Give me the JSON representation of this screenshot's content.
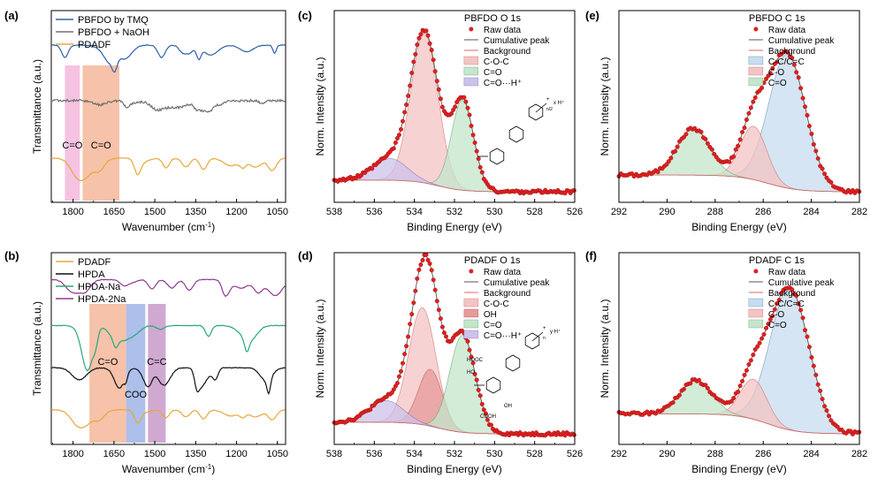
{
  "panels": [
    {
      "id": "a",
      "label": "(a)",
      "type": "ftir",
      "xlabel": "Wavenumber (cm",
      "xlabel_sup": "-1",
      "xlabel_end": ")",
      "ylabel": "Transmittance (a.u.)",
      "xlim": [
        1880,
        1020
      ],
      "xticks": [
        "1800",
        "1650",
        "1500",
        "1350",
        "1200",
        "1050"
      ],
      "xtick_values": [
        1800,
        1650,
        1500,
        1350,
        1200,
        1050
      ],
      "bands": [
        {
          "from": 1830,
          "to": 1775,
          "color": "#f3b8dc",
          "label": "C=O"
        },
        {
          "from": 1765,
          "to": 1630,
          "color": "#f5b79a",
          "label": "C=O"
        }
      ],
      "series": [
        {
          "name": "PBFDO by TMQ",
          "color": "#2c62a8",
          "base": 0.18,
          "amp": 0.9,
          "seed": 1
        },
        {
          "name": "PBFDO + NaOH",
          "color": "#707070",
          "base": 0.47,
          "amp": 0.5,
          "seed": 2
        },
        {
          "name": "PDADF",
          "color": "#e8a73a",
          "base": 0.77,
          "amp": 1.0,
          "seed": 3
        }
      ]
    },
    {
      "id": "b",
      "label": "(b)",
      "type": "ftir",
      "xlabel": "Wavenumber (cm",
      "xlabel_sup": "-1",
      "xlabel_end": ")",
      "ylabel": "Transmittance (a.u.)",
      "xlim": [
        1880,
        1020
      ],
      "xticks": [
        "1800",
        "1650",
        "1500",
        "1350",
        "1200",
        "1050"
      ],
      "xtick_values": [
        1800,
        1650,
        1500,
        1350,
        1200,
        1050
      ],
      "bands": [
        {
          "from": 1740,
          "to": 1605,
          "color": "#f5b79a",
          "label": "C=O"
        },
        {
          "from": 1605,
          "to": 1535,
          "color": "#9fb4e6",
          "label": "COO"
        },
        {
          "from": 1525,
          "to": 1460,
          "color": "#c79ac9",
          "label": "C=C"
        }
      ],
      "series": [
        {
          "name": "PDADF",
          "color": "#e8a73a",
          "base": 0.82,
          "amp": 0.8,
          "seed": 3
        },
        {
          "name": "HPDA",
          "color": "#111111",
          "base": 0.6,
          "amp": 1.3,
          "seed": 4
        },
        {
          "name": "HPDA-Na",
          "color": "#2aa57e",
          "base": 0.38,
          "amp": 1.0,
          "seed": 5
        },
        {
          "name": "HPDA-2Na",
          "color": "#8e3b8e",
          "base": 0.14,
          "amp": 0.9,
          "seed": 6
        }
      ]
    },
    {
      "id": "c",
      "label": "(c)",
      "type": "xps",
      "title": "PBFDO O 1s",
      "xlabel": "Binding Energy (eV)",
      "ylabel": "Norm. Intensity (a.u.)",
      "xlim": [
        538,
        526
      ],
      "xticks": [
        "538",
        "536",
        "534",
        "532",
        "530",
        "528",
        "526"
      ],
      "xtick_values": [
        538,
        536,
        534,
        532,
        530,
        528,
        526
      ],
      "bg": {
        "left": 0.07,
        "right": 0.0,
        "center": 532.8
      },
      "peaks": [
        {
          "name": "C-O-C",
          "center": 533.5,
          "fwhm": 1.6,
          "height": 0.9,
          "color": "#f3c4c4",
          "line": "#d06a6a"
        },
        {
          "name": "C=O",
          "center": 531.6,
          "fwhm": 1.3,
          "height": 0.54,
          "color": "#c4e6cc",
          "line": "#5fa872"
        },
        {
          "name": "C=O···H⁺",
          "center": 535.2,
          "fwhm": 2.0,
          "height": 0.13,
          "color": "#cdc3ea",
          "line": "#8570c0"
        }
      ],
      "legend": [
        "Raw data",
        "Cumulative peak",
        "Background",
        "C-O-C",
        "C=O",
        "C=O···H⁺"
      ],
      "structure_labels": [
        "+",
        "x H⁺",
        "n/2"
      ]
    },
    {
      "id": "d",
      "label": "(d)",
      "type": "xps",
      "title": "PDADF O 1s",
      "xlabel": "Binding Energy (eV)",
      "ylabel": "Norm. Intensity (a.u.)",
      "xlim": [
        538,
        526
      ],
      "xticks": [
        "538",
        "536",
        "534",
        "532",
        "530",
        "528",
        "526"
      ],
      "xtick_values": [
        538,
        536,
        534,
        532,
        530,
        528,
        526
      ],
      "bg": {
        "left": 0.07,
        "right": 0.0,
        "center": 532.8
      },
      "peaks": [
        {
          "name": "C-O-C",
          "center": 533.6,
          "fwhm": 1.6,
          "height": 0.7,
          "color": "#f3c4c4",
          "line": "#d06a6a"
        },
        {
          "name": "OH",
          "center": 533.2,
          "fwhm": 1.4,
          "height": 0.34,
          "color": "#e79a9a",
          "line": "#c05555"
        },
        {
          "name": "C=O",
          "center": 531.6,
          "fwhm": 1.5,
          "height": 0.58,
          "color": "#c4e6cc",
          "line": "#5fa872"
        },
        {
          "name": "C=O···H⁺",
          "center": 535.4,
          "fwhm": 2.0,
          "height": 0.13,
          "color": "#cdc3ea",
          "line": "#8570c0"
        }
      ],
      "legend": [
        "Raw data",
        "Cumulative peak",
        "Background",
        "C-O-C",
        "OH",
        "C=O",
        "C=O···H⁺"
      ],
      "structure_labels": [
        "HOOC",
        "OH",
        "HO",
        "COOH",
        "+",
        "y H⁺",
        "n"
      ]
    },
    {
      "id": "e",
      "label": "(e)",
      "type": "xps",
      "title": "PBFDO C 1s",
      "xlabel": "Binding Energy (eV)",
      "ylabel": "Norm. Intensity (a.u.)",
      "xlim": [
        292,
        282
      ],
      "xticks": [
        "292",
        "290",
        "288",
        "286",
        "284",
        "282"
      ],
      "xtick_values": [
        292,
        290,
        288,
        286,
        284,
        282
      ],
      "bg": {
        "left": 0.1,
        "right": 0.0,
        "center": 285.8
      },
      "peaks": [
        {
          "name": "C-C/C=C",
          "center": 285.0,
          "fwhm": 1.8,
          "height": 0.8,
          "color": "#c7ddef",
          "line": "#5a8bc0"
        },
        {
          "name": "C-O",
          "center": 286.4,
          "fwhm": 1.3,
          "height": 0.32,
          "color": "#f3c4c4",
          "line": "#d06a6a"
        },
        {
          "name": "C=O",
          "center": 288.9,
          "fwhm": 1.6,
          "height": 0.28,
          "color": "#c4e6cc",
          "line": "#5fa872"
        }
      ],
      "legend": [
        "Raw data",
        "Cumulative peak",
        "Background",
        "C-C/C=C",
        "C-O",
        "C=O"
      ]
    },
    {
      "id": "f",
      "label": "(f)",
      "type": "xps",
      "title": "PDADF C 1s",
      "xlabel": "Binding Energy (eV)",
      "ylabel": "Norm. Intensity (a.u.)",
      "xlim": [
        292,
        282
      ],
      "xticks": [
        "292",
        "290",
        "288",
        "286",
        "284",
        "282"
      ],
      "xtick_values": [
        292,
        290,
        288,
        286,
        284,
        282
      ],
      "bg": {
        "left": 0.12,
        "right": 0.0,
        "center": 285.8
      },
      "peaks": [
        {
          "name": "C-C/C=C",
          "center": 284.9,
          "fwhm": 1.9,
          "height": 0.85,
          "color": "#c7ddef",
          "line": "#5a8bc0"
        },
        {
          "name": "C-O",
          "center": 286.4,
          "fwhm": 1.3,
          "height": 0.24,
          "color": "#f3c4c4",
          "line": "#d06a6a"
        },
        {
          "name": "C=O",
          "center": 288.8,
          "fwhm": 1.6,
          "height": 0.2,
          "color": "#c4e6cc",
          "line": "#5fa872"
        }
      ],
      "legend": [
        "Raw data",
        "Cumulative peak",
        "Background",
        "C-C/C=C",
        "C-O",
        "C=O"
      ]
    }
  ],
  "chart_data": [
    {
      "type": "line",
      "title": "(a)",
      "xlabel": "Wavenumber (cm-1)",
      "ylabel": "Transmittance (a.u.)",
      "xlim": [
        1880,
        1020
      ],
      "series": [
        {
          "name": "PBFDO by TMQ"
        },
        {
          "name": "PBFDO + NaOH"
        },
        {
          "name": "PDADF"
        }
      ],
      "annotations": [
        "C=O",
        "C=O"
      ]
    },
    {
      "type": "line",
      "title": "(b)",
      "xlabel": "Wavenumber (cm-1)",
      "ylabel": "Transmittance (a.u.)",
      "xlim": [
        1880,
        1020
      ],
      "series": [
        {
          "name": "PDADF"
        },
        {
          "name": "HPDA"
        },
        {
          "name": "HPDA-Na"
        },
        {
          "name": "HPDA-2Na"
        }
      ],
      "annotations": [
        "C=O",
        "COO",
        "C=C"
      ]
    },
    {
      "type": "area",
      "title": "PBFDO O 1s",
      "xlabel": "Binding Energy (eV)",
      "ylabel": "Norm. Intensity (a.u.)",
      "xlim": [
        538,
        526
      ]
    },
    {
      "type": "area",
      "title": "PDADF O 1s",
      "xlabel": "Binding Energy (eV)",
      "ylabel": "Norm. Intensity (a.u.)",
      "xlim": [
        538,
        526
      ]
    },
    {
      "type": "area",
      "title": "PBFDO C 1s",
      "xlabel": "Binding Energy (eV)",
      "ylabel": "Norm. Intensity (a.u.)",
      "xlim": [
        292,
        282
      ]
    },
    {
      "type": "area",
      "title": "PDADF C 1s",
      "xlabel": "Binding Energy (eV)",
      "ylabel": "Norm. Intensity (a.u.)",
      "xlim": [
        292,
        282
      ]
    }
  ]
}
